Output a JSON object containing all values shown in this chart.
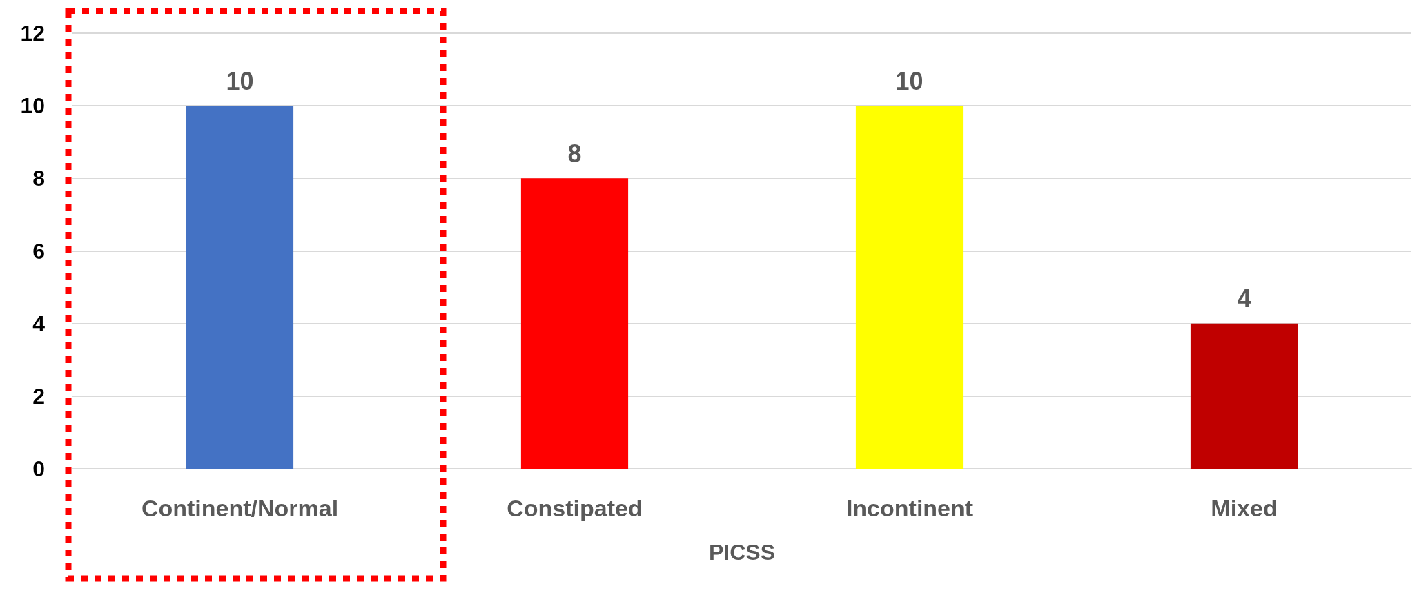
{
  "chart_data": {
    "type": "bar",
    "xlabel": "PICSS",
    "categories": [
      "Continent/Normal",
      "Constipated",
      "Incontinent",
      "Mixed"
    ],
    "values": [
      10,
      8,
      10,
      4
    ],
    "colors": [
      "#4472c4",
      "#ff0000",
      "#ffff00",
      "#c00000"
    ],
    "ylim": [
      0,
      12
    ],
    "yticks": [
      0,
      2,
      4,
      6,
      8,
      10,
      12
    ],
    "grid": "y",
    "data_labels": true
  }
}
